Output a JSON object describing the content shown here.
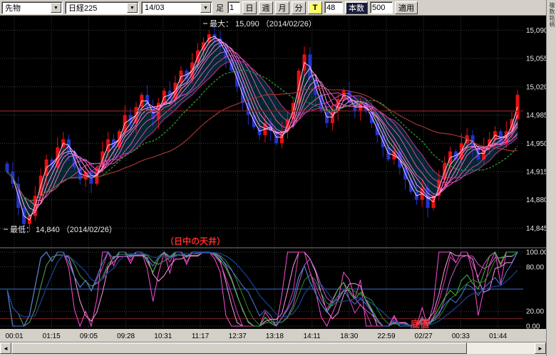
{
  "toolbar": {
    "instrument_select": "先物",
    "symbol_select": "日経225",
    "contract_select": "14/03",
    "bar_type_label": "足",
    "interval_value": "1",
    "period_buttons": [
      "日",
      "週",
      "月",
      "分"
    ],
    "tick_button_label": "T",
    "count_value": "48",
    "count_unit_button": "本数",
    "bars_value": "500",
    "apply_button": "適用"
  },
  "side_panel": {
    "tab_label": "複数銘柄"
  },
  "chart_data": {
    "type": "candlestick",
    "instrument": "日経225 先物 14/03 1分足",
    "y_ticks": [
      {
        "v": 15090,
        "label": "15,090"
      },
      {
        "v": 15055,
        "label": "15,055"
      },
      {
        "v": 15020,
        "label": "15,020"
      },
      {
        "v": 14985,
        "label": "14,985"
      },
      {
        "v": 14950,
        "label": "14,950"
      },
      {
        "v": 14915,
        "label": "14,915"
      },
      {
        "v": 14880,
        "label": "14,880"
      },
      {
        "v": 14845,
        "label": "14,845"
      }
    ],
    "x_labels": [
      "00:01",
      "01:15",
      "09:05",
      "09:28",
      "10:31",
      "11:17",
      "12:37",
      "13:18",
      "14:11",
      "18:30",
      "22:59",
      "02/27",
      "00:33",
      "01:44"
    ],
    "open_first": 14925,
    "high_max": 15090,
    "low_min": 14840,
    "closes": [
      14915,
      14900,
      14870,
      14850,
      14860,
      14885,
      14910,
      14930,
      14920,
      14945,
      14955,
      14940,
      14920,
      14905,
      14915,
      14900,
      14920,
      14940,
      14955,
      14945,
      14965,
      14985,
      14975,
      14995,
      15010,
      14995,
      14980,
      15000,
      15015,
      15005,
      15025,
      15040,
      15030,
      15050,
      15065,
      15075,
      15085,
      15080,
      15070,
      15055,
      15040,
      15020,
      15000,
      14985,
      14970,
      14960,
      14975,
      14965,
      14950,
      14965,
      14980,
      15000,
      15040,
      15060,
      15030,
      15010,
      14990,
      14975,
      14990,
      15005,
      15015,
      15000,
      14990,
      15000,
      14990,
      14975,
      14960,
      14945,
      14930,
      14940,
      14920,
      14905,
      14890,
      14880,
      14895,
      14870,
      14885,
      14905,
      14925,
      14940,
      14930,
      14950,
      14960,
      14945,
      14930,
      14945,
      14955,
      14965,
      14950,
      14965,
      14980,
      15010
    ],
    "levels": {
      "flat_ma": 14990
    },
    "annotations": {
      "max": "最大： 15,090 （2014/02/26）",
      "min": "最低： 14,840 （2014/02/26）",
      "ceiling": "（日中の天井）",
      "bottom": "底値"
    },
    "oscillator": {
      "type": "stochastics",
      "y_ticks": [
        {
          "v": 100,
          "label": "100.00"
        },
        {
          "v": 80,
          "label": "80.00"
        },
        {
          "v": 20,
          "label": "20.00"
        },
        {
          "v": 0,
          "label": "0.00"
        }
      ],
      "ref_lines": [
        {
          "v": 50,
          "color": "#3a6fd0"
        },
        {
          "v": 10,
          "color": "#7c2424"
        }
      ]
    },
    "colors": {
      "up": "#e81010",
      "down": "#2233cc",
      "bg": "#000000",
      "grid": "#3f3f3f",
      "ribbon_fill": "rgba(0,220,255,0.18)",
      "green_ma": "#2e8b2e",
      "red_ma": "#a33333"
    }
  }
}
